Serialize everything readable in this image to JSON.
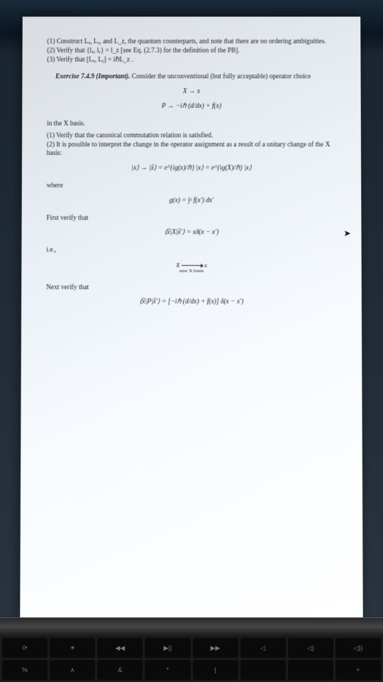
{
  "content": {
    "line1": "(1) Construct Lₓ, Lᵧ, and L_z, the quantum counterparts, and note that there are no ordering ambiguities.",
    "line2": "(2) Verify that {lₓ, lᵧ} = l_z [see Eq. (2.7.3) for the definition of the PB].",
    "line3": "(3) Verify that [Lₓ, Lᵧ] = iℏL_z .",
    "exercise_label": "Exercise 7.4.9 (Important).",
    "exercise_text": " Consider the unconventional (but fully acceptable) operator choice",
    "eq1": "X → x",
    "eq2": "P → −iℏ (d/dx) + f(x)",
    "basis_text": "in the X basis.",
    "part1": "(1) Verify that the canonical commutation relation is satisfied.",
    "part2": "(2) It is possible to interpret the change in the operator assignment as a result of a unitary change of the X basis:",
    "eq3": "|x⟩ → |x̃⟩ = e^{ig(x)/ℏ} |x⟩ = e^{ig(X)/ℏ} |x⟩",
    "where": "where",
    "eq4": "g(x) = ∫ˣ f(x′) dx′",
    "first_verify": "First verify that",
    "eq5": "⟨x̃|X|x̃′⟩ = xδ(x − x′)",
    "ie": "i.e.,",
    "diagram_left": "X",
    "diagram_right": "x",
    "diagram_label": "new X basis",
    "next_verify": "Next verify that",
    "eq6": "⟨x̃|P|x̃′⟩ = [−iℏ (d/dx) + f(x)] δ(x − x′)"
  },
  "keyboard": {
    "row1": [
      "⟳",
      "☀",
      "◀◀",
      "▶||",
      "▶▶",
      "◁",
      "◁)",
      "◁))"
    ],
    "row2": [
      "%",
      "∧",
      "&",
      "*",
      "|",
      "",
      "",
      "+"
    ]
  },
  "colors": {
    "page_bg": "#f0f4f8",
    "text": "#1a1a2a",
    "keyboard_bg": "#1a1a1a",
    "key_bg": "#0a0a0a"
  }
}
